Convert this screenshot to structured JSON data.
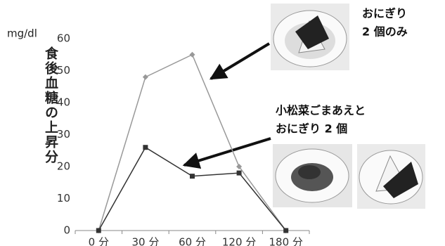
{
  "chart_data": {
    "type": "line",
    "unit": "mg/dl",
    "y_label": "食後血糖の上昇分",
    "categories": [
      "0 分",
      "30 分",
      "60 分",
      "120 分",
      "180 分"
    ],
    "series": [
      {
        "color": "#999999",
        "marker": "diamond",
        "values": [
          0,
          48,
          55,
          20,
          0
        ]
      },
      {
        "color": "#333333",
        "marker": "square",
        "values": [
          0,
          26,
          17,
          18,
          0
        ]
      }
    ],
    "ylim": [
      0,
      60
    ],
    "yticks": [
      0,
      10,
      20,
      30,
      40,
      50,
      60
    ],
    "grid": false,
    "annotations": [
      [
        "おにぎり",
        "2 個のみ"
      ],
      [
        "小松菜ごまあえと",
        "おにぎり 2 個"
      ]
    ]
  }
}
